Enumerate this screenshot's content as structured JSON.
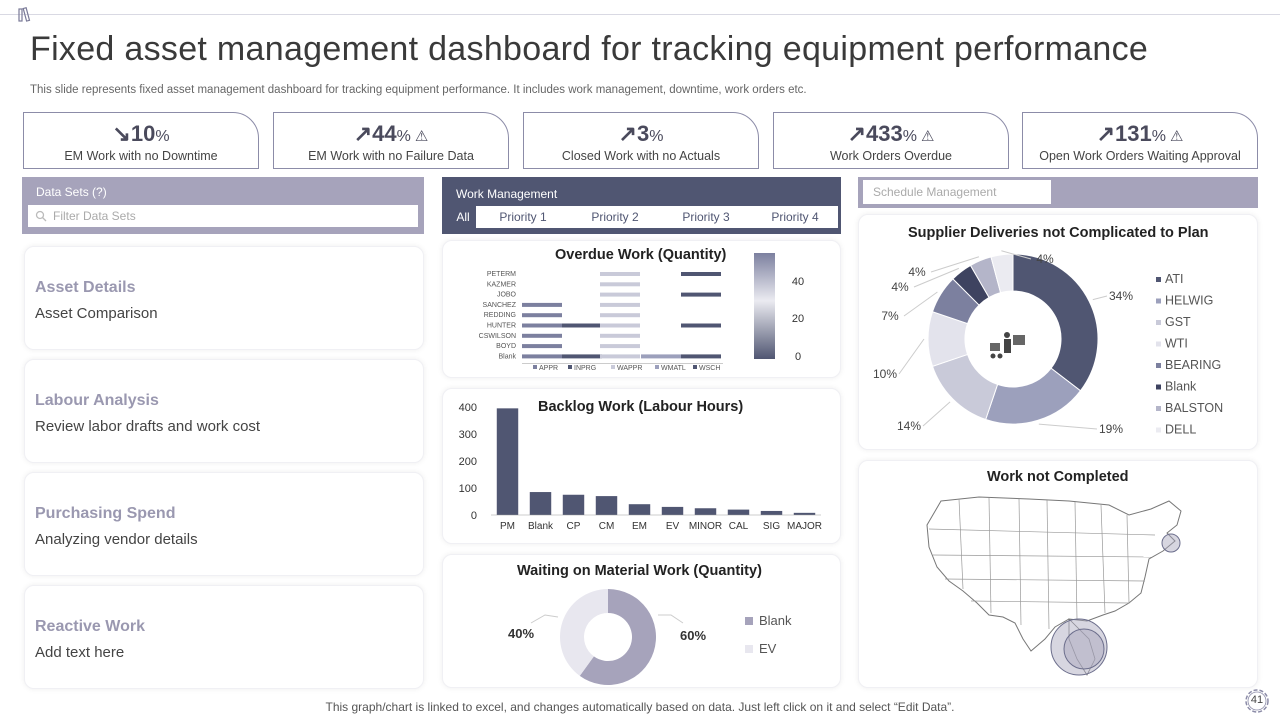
{
  "header": {
    "title": "Fixed asset management  dashboard for tracking equipment performance",
    "subtitle": "This slide represents fixed asset management dashboard for tracking equipment performance. It includes work management, downtime, work orders etc."
  },
  "kpis": [
    {
      "arrow": "↘",
      "value": "10",
      "unit": "%",
      "warn": false,
      "label": "EM Work with no Downtime"
    },
    {
      "arrow": "↗",
      "value": "44",
      "unit": "%",
      "warn": true,
      "label": "EM Work with no Failure Data"
    },
    {
      "arrow": "↗",
      "value": "3",
      "unit": "%",
      "warn": false,
      "label": "Closed Work with no Actuals"
    },
    {
      "arrow": "↗",
      "value": "433",
      "unit": "%",
      "warn": true,
      "label": "Work Orders Overdue"
    },
    {
      "arrow": "↗",
      "value": "131",
      "unit": "%",
      "warn": true,
      "label": "Open Work Orders Waiting Approval"
    }
  ],
  "datasets": {
    "header": "Data Sets (?)",
    "filter_placeholder": "Filter Data Sets",
    "items": [
      {
        "title": "Asset Details",
        "subtitle": "Asset Comparison"
      },
      {
        "title": "Labour Analysis",
        "subtitle": "Review labor drafts and work cost"
      },
      {
        "title": "Purchasing Spend",
        "subtitle": "Analyzing vendor details"
      },
      {
        "title": "Reactive Work",
        "subtitle": "Add text here"
      }
    ]
  },
  "work_management": {
    "header": "Work Management",
    "tabs": [
      "All",
      "Priority 1",
      "Priority 2",
      "Priority 3",
      "Priority 4"
    ]
  },
  "schedule_management": {
    "label": "Schedule Management"
  },
  "overdue": {
    "title": "Overdue Work (Quantity)",
    "rows": [
      "PETERM",
      "KAZMER",
      "JOBO",
      "SANCHEZ",
      "REDDING",
      "HUNTER",
      "CSWILSON",
      "BOYD",
      "Blank"
    ],
    "legend": [
      "APPR",
      "INPRG",
      "WAPPR",
      "WMATL",
      "WSCH"
    ],
    "scale_ticks": [
      "40",
      "20",
      "0"
    ]
  },
  "chart_data": [
    {
      "type": "bar",
      "title": "Backlog Work (Labour Hours)",
      "categories": [
        "PM",
        "Blank",
        "CP",
        "CM",
        "EM",
        "EV",
        "MINOR",
        "CAL",
        "SIG",
        "MAJOR"
      ],
      "values": [
        395,
        85,
        75,
        70,
        40,
        30,
        25,
        20,
        15,
        8
      ],
      "ylim": [
        0,
        400
      ],
      "yticks": [
        "0",
        "100",
        "200",
        "300",
        "400"
      ]
    },
    {
      "type": "pie",
      "title": "Waiting on Material Work (Quantity)",
      "labels": [
        "Blank",
        "EV"
      ],
      "values": [
        60,
        40
      ],
      "value_labels": [
        "60%",
        "40%"
      ],
      "colors": [
        "#a6a3bb",
        "#e8e7ef"
      ]
    },
    {
      "type": "pie",
      "title": "Supplier Deliveries not Complicated to Plan",
      "labels": [
        "ATI",
        "HELWIG",
        "GST",
        "WTI",
        "BEARING",
        "Blank",
        "BALSTON",
        "DELL"
      ],
      "values": [
        34,
        19,
        14,
        10,
        7,
        4,
        4,
        4
      ],
      "value_labels": [
        "34%",
        "19%",
        "14%",
        "10%",
        "7%",
        "4%",
        "4%",
        "4%"
      ],
      "colors": [
        "#505672",
        "#9ca0bc",
        "#c9cad9",
        "#e3e3ec",
        "#7c809f",
        "#3e4360",
        "#b4b5c9",
        "#ebebf1"
      ]
    }
  ],
  "work_not_completed": {
    "title": "Work not Completed"
  },
  "footer": {
    "note": "This graph/chart is linked to excel,  and changes automatically based on data. Just left click on it and select “Edit Data”.",
    "page": "41"
  }
}
